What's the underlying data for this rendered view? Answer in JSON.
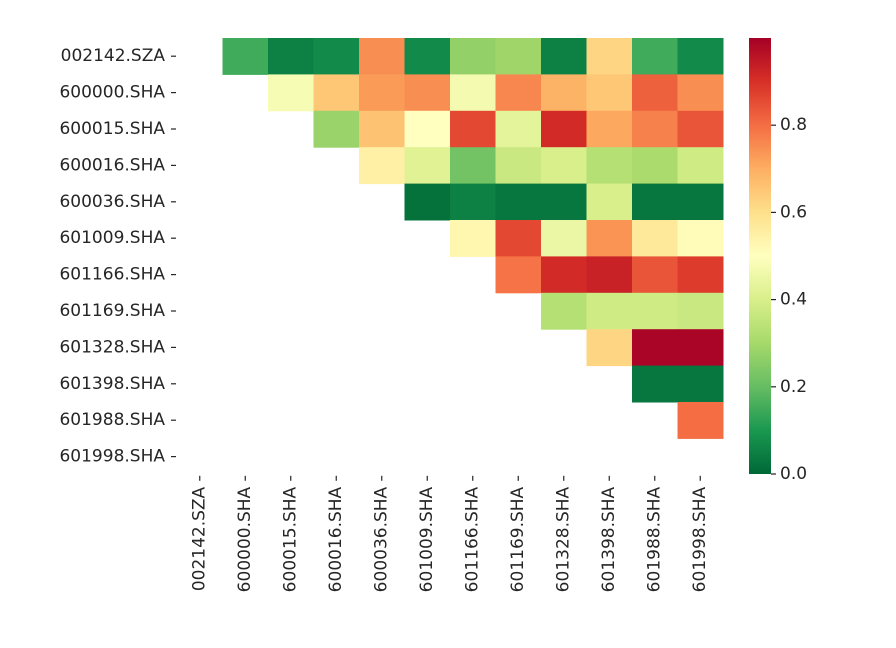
{
  "chart_data": {
    "type": "heatmap",
    "title": "",
    "xlabel": "",
    "ylabel": "",
    "row_labels": [
      "002142.SZA",
      "600000.SHA",
      "600015.SHA",
      "600016.SHA",
      "600036.SHA",
      "601009.SHA",
      "601166.SHA",
      "601169.SHA",
      "601328.SHA",
      "601398.SHA",
      "601988.SHA",
      "601998.SHA"
    ],
    "col_labels": [
      "002142.SZA",
      "600000.SHA",
      "600015.SHA",
      "600016.SHA",
      "600036.SHA",
      "601009.SHA",
      "601166.SHA",
      "601169.SHA",
      "601328.SHA",
      "601398.SHA",
      "601988.SHA",
      "601998.SHA"
    ],
    "values": [
      [
        null,
        0.15,
        0.05,
        0.07,
        0.75,
        0.07,
        0.27,
        0.29,
        0.05,
        0.62,
        0.15,
        0.07
      ],
      [
        null,
        null,
        0.48,
        0.65,
        0.73,
        0.75,
        0.47,
        0.76,
        0.69,
        0.65,
        0.82,
        0.75
      ],
      [
        null,
        null,
        null,
        0.28,
        0.66,
        0.5,
        0.86,
        0.43,
        0.91,
        0.71,
        0.77,
        0.84
      ],
      [
        null,
        null,
        null,
        null,
        0.55,
        0.42,
        0.22,
        0.37,
        0.4,
        0.33,
        0.31,
        0.38
      ],
      [
        null,
        null,
        null,
        null,
        null,
        0.02,
        0.05,
        0.03,
        0.03,
        0.4,
        0.03,
        0.03
      ],
      [
        null,
        null,
        null,
        null,
        null,
        null,
        0.53,
        0.86,
        0.45,
        0.74,
        0.57,
        0.51
      ],
      [
        null,
        null,
        null,
        null,
        null,
        null,
        null,
        0.79,
        0.91,
        0.93,
        0.84,
        0.88
      ],
      [
        null,
        null,
        null,
        null,
        null,
        null,
        null,
        null,
        0.33,
        0.38,
        0.38,
        0.37
      ],
      [
        null,
        null,
        null,
        null,
        null,
        null,
        null,
        null,
        null,
        0.62,
        0.99,
        0.99
      ],
      [
        null,
        null,
        null,
        null,
        null,
        null,
        null,
        null,
        null,
        null,
        0.03,
        0.03
      ],
      [
        null,
        null,
        null,
        null,
        null,
        null,
        null,
        null,
        null,
        null,
        null,
        0.8
      ],
      [
        null,
        null,
        null,
        null,
        null,
        null,
        null,
        null,
        null,
        null,
        null,
        null
      ]
    ],
    "colormap": "RdYlGn_r",
    "vmin": 0.0,
    "vmax": 1.0,
    "colorbar_ticks": [
      "0.0",
      "0.2",
      "0.4",
      "0.6",
      "0.8"
    ],
    "grid": false
  }
}
